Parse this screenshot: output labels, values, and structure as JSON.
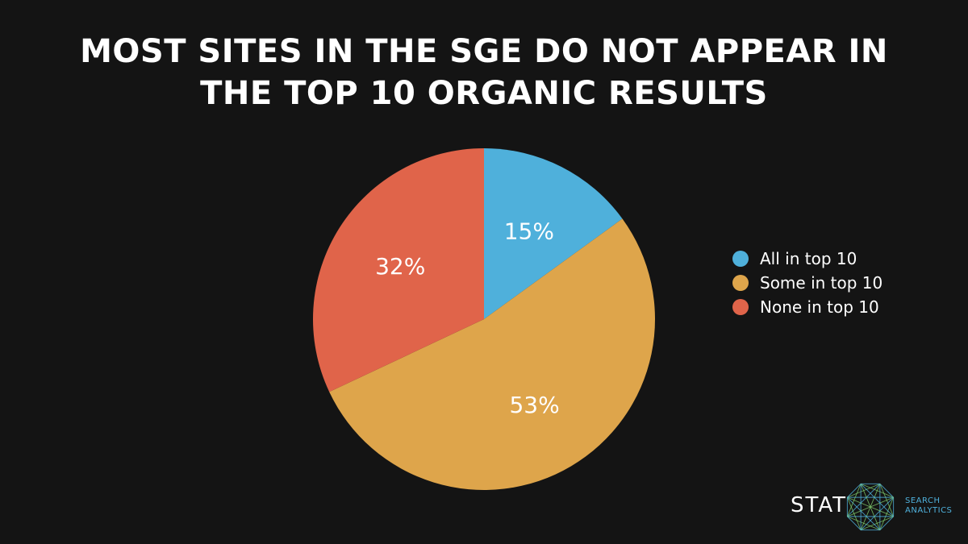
{
  "title_lines": [
    "MOST SITES IN THE SGE DO NOT APPEAR IN",
    "THE TOP 10 ORGANIC RESULTS"
  ],
  "chart_data": {
    "type": "pie",
    "title": "MOST SITES IN THE SGE DO NOT APPEAR IN THE TOP 10 ORGANIC RESULTS",
    "slices": [
      {
        "name": "All in top 10",
        "value": 15,
        "label": "15%",
        "color": "#4fb0db"
      },
      {
        "name": "Some in top 10",
        "value": 53,
        "label": "53%",
        "color": "#dea54b"
      },
      {
        "name": "None in top 10",
        "value": 32,
        "label": "32%",
        "color": "#e0644a"
      }
    ],
    "legend_position": "right"
  },
  "brand": {
    "name": "STAT",
    "tagline": [
      "SEARCH",
      "ANALYTICS"
    ],
    "icon": "network-polygon-icon"
  }
}
